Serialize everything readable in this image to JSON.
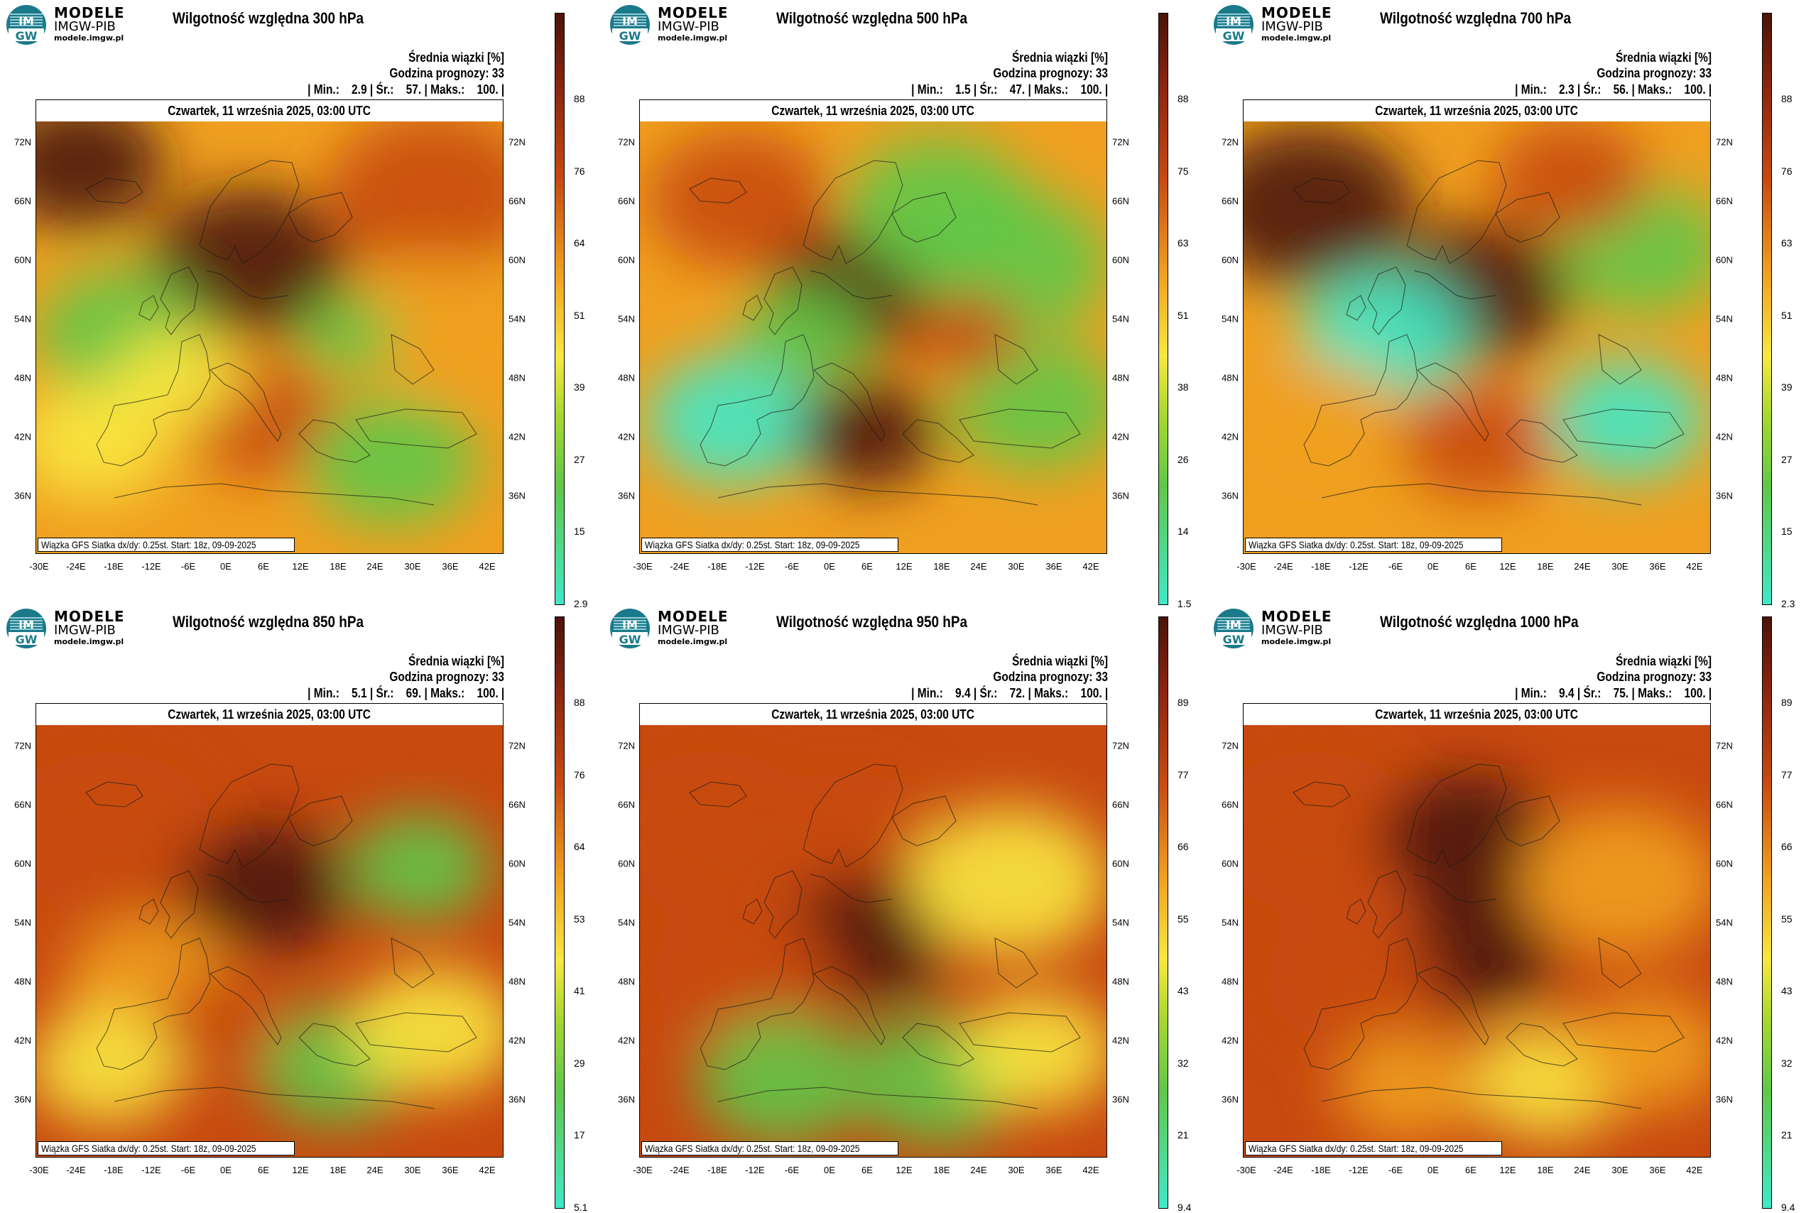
{
  "logo": {
    "line1": "MODELE",
    "line2": "IMGW-PIB",
    "line3": "modele.imgw.pl"
  },
  "common": {
    "meta_title": "Średnia wiązki [%]",
    "forecast": "Godzina prognozy: 33",
    "date": "Czwartek, 11 września 2025, 03:00 UTC",
    "footer": "Wiązka GFS Siatka dx/dy: 0.25st. Start: 18z, 09-09-2025",
    "lat_labels": [
      "72N",
      "66N",
      "60N",
      "54N",
      "48N",
      "42N",
      "36N"
    ],
    "lon_labels": [
      "-30E",
      "-24E",
      "-18E",
      "-12E",
      "-6E",
      "0E",
      "6E",
      "12E",
      "18E",
      "24E",
      "30E",
      "36E",
      "42E"
    ]
  },
  "colors": {
    "high": "#4a1408",
    "mid_high": "#c84a10",
    "mid": "#f0a020",
    "mid_low": "#f8e840",
    "low_mid": "#60c848",
    "low": "#40e8c8"
  },
  "panels": [
    {
      "title": "Wilgotność względna 300 hPa",
      "stats": "| Min.:    2.9 | Śr.:    57. | Maks.:    100. |",
      "cbar": [
        "88",
        "76",
        "64",
        "51",
        "39",
        "27",
        "15",
        "2.9"
      ],
      "mean": 57
    },
    {
      "title": "Wilgotność względna 500 hPa",
      "stats": "| Min.:    1.5 | Śr.:    47. | Maks.:    100. |",
      "cbar": [
        "88",
        "75",
        "63",
        "51",
        "38",
        "26",
        "14",
        "1.5"
      ],
      "mean": 47
    },
    {
      "title": "Wilgotność względna 700 hPa",
      "stats": "| Min.:    2.3 | Śr.:    56. | Maks.:    100. |",
      "cbar": [
        "88",
        "76",
        "63",
        "51",
        "39",
        "27",
        "15",
        "2.3"
      ],
      "mean": 56
    },
    {
      "title": "Wilgotność względna 850 hPa",
      "stats": "| Min.:    5.1 | Śr.:    69. | Maks.:    100. |",
      "cbar": [
        "88",
        "76",
        "64",
        "53",
        "41",
        "29",
        "17",
        "5.1"
      ],
      "mean": 69
    },
    {
      "title": "Wilgotność względna 950 hPa",
      "stats": "| Min.:    9.4 | Śr.:    72. | Maks.:    100. |",
      "cbar": [
        "89",
        "77",
        "66",
        "55",
        "43",
        "32",
        "21",
        "9.4"
      ],
      "mean": 72
    },
    {
      "title": "Wilgotność względna 1000 hPa",
      "stats": "| Min.:    9.4 | Śr.:    75. | Maks.:    100. |",
      "cbar": [
        "89",
        "77",
        "66",
        "55",
        "43",
        "32",
        "21",
        "9.4"
      ],
      "mean": 75
    }
  ]
}
